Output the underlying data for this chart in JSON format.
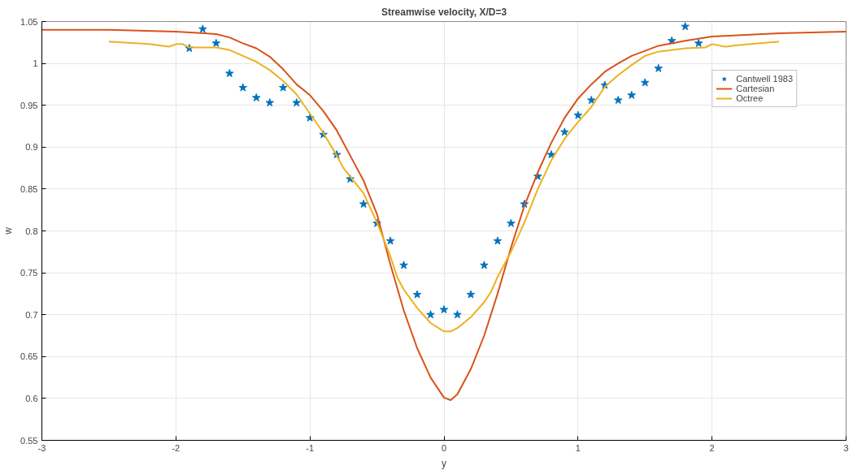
{
  "chart_data": {
    "type": "line",
    "title": "Streamwise velocity, X/D=3",
    "xlabel": "y",
    "ylabel": "w",
    "xlim": [
      -3,
      3
    ],
    "xticks": [
      -3,
      -2,
      -1,
      0,
      1,
      2,
      3
    ],
    "ylim": [
      0.55,
      1.05
    ],
    "yticks": [
      0.55,
      0.6,
      0.65,
      0.7,
      0.75,
      0.8,
      0.85,
      0.9,
      0.95,
      1,
      1.05
    ],
    "grid": true,
    "legend": "top right",
    "series": [
      {
        "name": "Cantwell 1983",
        "type": "scatter",
        "marker": "star",
        "color": "#0072bd",
        "x": [
          -1.9,
          -1.8,
          -1.7,
          -1.6,
          -1.5,
          -1.4,
          -1.3,
          -1.2,
          -1.1,
          -1.0,
          -0.9,
          -0.8,
          -0.7,
          -0.6,
          -0.5,
          -0.4,
          -0.3,
          -0.2,
          -0.1,
          0.0,
          0.1,
          0.2,
          0.3,
          0.4,
          0.5,
          0.6,
          0.7,
          0.8,
          0.9,
          1.0,
          1.1,
          1.2,
          1.3,
          1.4,
          1.5,
          1.6,
          1.7,
          1.8,
          1.9
        ],
        "values": [
          1.018,
          1.041,
          1.024,
          0.988,
          0.971,
          0.959,
          0.953,
          0.971,
          0.953,
          0.935,
          0.915,
          0.891,
          0.862,
          0.832,
          0.809,
          0.788,
          0.759,
          0.724,
          0.7,
          0.706,
          0.7,
          0.724,
          0.759,
          0.788,
          0.809,
          0.832,
          0.865,
          0.891,
          0.918,
          0.938,
          0.956,
          0.974,
          0.956,
          0.962,
          0.977,
          0.994,
          1.027,
          1.044,
          1.024
        ]
      },
      {
        "name": "Cartesian",
        "marker": "none",
        "line_style": "solid",
        "color": "#d95319",
        "x": [
          -3,
          -2.5,
          -2,
          -1.7,
          -1.6,
          -1.5,
          -1.4,
          -1.3,
          -1.2,
          -1.1,
          -1.0,
          -0.9,
          -0.8,
          -0.7,
          -0.6,
          -0.5,
          -0.4,
          -0.3,
          -0.2,
          -0.1,
          0.0,
          0.05,
          0.1,
          0.2,
          0.3,
          0.4,
          0.5,
          0.6,
          0.7,
          0.8,
          0.9,
          1.0,
          1.1,
          1.2,
          1.3,
          1.4,
          1.5,
          1.6,
          1.8,
          2.0,
          2.5,
          3.0
        ],
        "values": [
          1.04,
          1.04,
          1.038,
          1.035,
          1.031,
          1.024,
          1.018,
          1.008,
          0.993,
          0.975,
          0.962,
          0.943,
          0.92,
          0.89,
          0.86,
          0.82,
          0.76,
          0.705,
          0.66,
          0.625,
          0.601,
          0.598,
          0.605,
          0.635,
          0.675,
          0.725,
          0.78,
          0.83,
          0.87,
          0.905,
          0.935,
          0.958,
          0.975,
          0.99,
          1.0,
          1.009,
          1.015,
          1.021,
          1.027,
          1.032,
          1.036,
          1.038
        ]
      },
      {
        "name": "Octree",
        "marker": "none",
        "line_style": "solid",
        "color": "#edb120",
        "x": [
          -2.5,
          -2.2,
          -2.05,
          -2.0,
          -1.95,
          -1.9,
          -1.7,
          -1.6,
          -1.5,
          -1.4,
          -1.3,
          -1.2,
          -1.1,
          -1.0,
          -0.9,
          -0.8,
          -0.75,
          -0.6,
          -0.5,
          -0.4,
          -0.35,
          -0.3,
          -0.2,
          -0.1,
          0.0,
          0.05,
          0.1,
          0.2,
          0.3,
          0.35,
          0.4,
          0.5,
          0.6,
          0.7,
          0.8,
          0.9,
          1.0,
          1.1,
          1.15,
          1.2,
          1.3,
          1.4,
          1.5,
          1.6,
          1.8,
          1.95,
          2.0,
          2.1,
          2.2,
          2.5
        ],
        "values": [
          1.026,
          1.023,
          1.02,
          1.023,
          1.023,
          1.019,
          1.019,
          1.016,
          1.009,
          1.002,
          0.992,
          0.979,
          0.963,
          0.94,
          0.917,
          0.89,
          0.875,
          0.845,
          0.81,
          0.77,
          0.745,
          0.73,
          0.708,
          0.69,
          0.68,
          0.68,
          0.684,
          0.697,
          0.715,
          0.727,
          0.745,
          0.775,
          0.81,
          0.85,
          0.884,
          0.91,
          0.93,
          0.948,
          0.96,
          0.972,
          0.986,
          0.998,
          1.009,
          1.014,
          1.018,
          1.019,
          1.023,
          1.02,
          1.022,
          1.026
        ]
      }
    ]
  }
}
